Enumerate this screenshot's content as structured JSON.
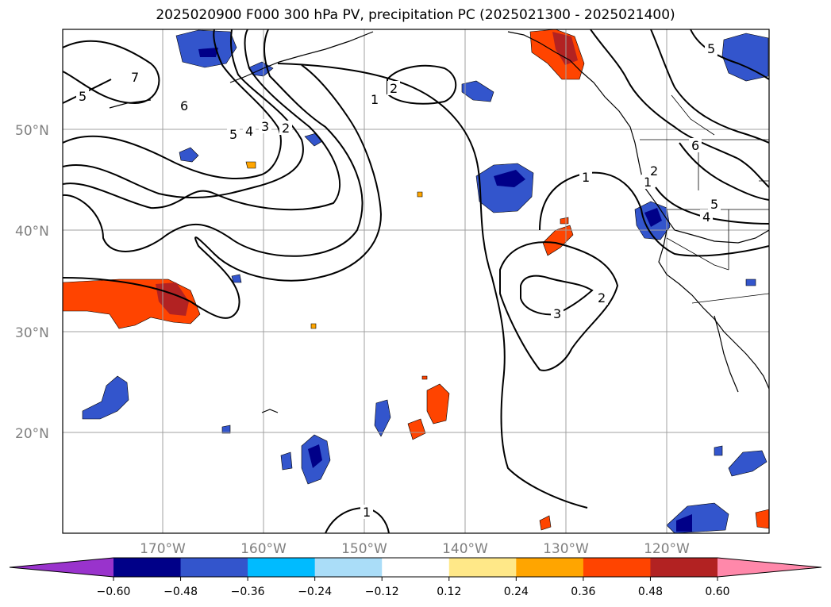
{
  "title": "2025020900 F000 300 hPa PV, precipitation PC (2025021300 - 2025021400)",
  "map": {
    "lat_labels": [
      "50°N",
      "40°N",
      "30°N",
      "20°N"
    ],
    "lon_labels": [
      "170°W",
      "160°W",
      "150°W",
      "140°W",
      "130°W",
      "120°W"
    ],
    "contour_labels": [
      "7",
      "5",
      "6",
      "5",
      "4",
      "3",
      "2",
      "2",
      "1",
      "1",
      "1",
      "2",
      "3",
      "2",
      "6",
      "5",
      "4",
      "5",
      "1"
    ],
    "grid": true
  },
  "colorbar": {
    "ticks": [
      "−0.60",
      "−0.48",
      "−0.36",
      "−0.24",
      "−0.12",
      "0.12",
      "0.24",
      "0.36",
      "0.48",
      "0.60"
    ],
    "colors": [
      "#9933cc",
      "#000088",
      "#3355cc",
      "#00bbff",
      "#aaddf8",
      "#ffffff",
      "#ffe888",
      "#ffa500",
      "#ff4400",
      "#b22222",
      "#ff88aa"
    ]
  }
}
